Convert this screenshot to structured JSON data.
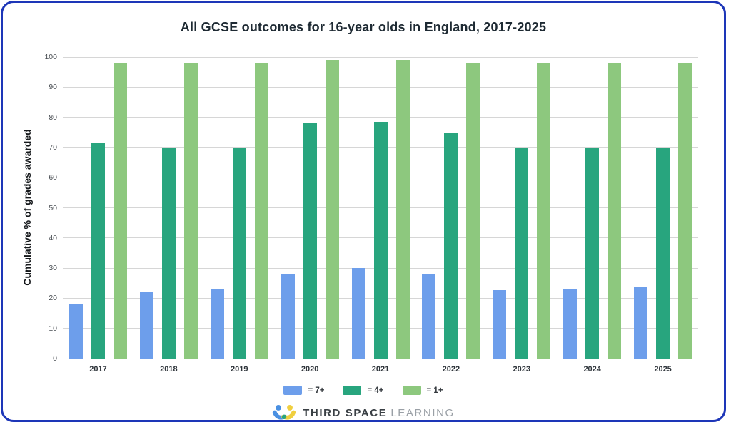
{
  "card": {
    "border_color": "#1d36b8",
    "background": "#ffffff"
  },
  "chart_data": {
    "type": "bar",
    "title": "All GCSE outcomes for 16-year olds in England, 2017-2025",
    "ylabel": "Cumulative % of grades awarded",
    "xlabel": "",
    "categories": [
      "2017",
      "2018",
      "2019",
      "2020",
      "2021",
      "2022",
      "2023",
      "2024",
      "2025"
    ],
    "series": [
      {
        "name": "= 7+",
        "key": "7plus",
        "color": "#6d9eeb",
        "values": [
          18.3,
          22.1,
          22.9,
          27.9,
          30,
          27.8,
          22.8,
          22.9,
          23.9
        ]
      },
      {
        "name": "= 4+",
        "key": "4plus",
        "color": "#28a57e",
        "values": [
          71.4,
          70,
          70,
          78.3,
          78.4,
          74.7,
          70,
          70,
          70
        ]
      },
      {
        "name": "= 1+",
        "key": "1plus",
        "color": "#8dc87e",
        "values": [
          98,
          98,
          98,
          99,
          99,
          98,
          98,
          98,
          98
        ]
      }
    ],
    "ylim": [
      0,
      100
    ],
    "yticks": [
      0,
      10,
      20,
      30,
      40,
      50,
      60,
      70,
      80,
      90,
      100
    ],
    "grid": true,
    "gridline_color": "#d6d6d6",
    "legend_position": "bottom"
  },
  "footer": {
    "brand_bold": "THIRD SPACE",
    "brand_light": "LEARNING",
    "logo_colors": {
      "blue": "#4a90e2",
      "yellow": "#f0cf3f",
      "teal": "#2aa57e"
    }
  }
}
